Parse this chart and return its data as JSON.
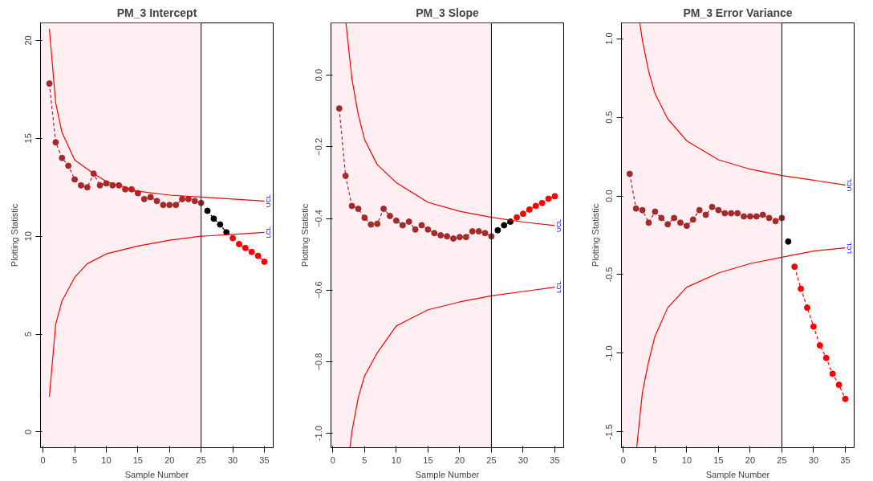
{
  "chart_data": [
    {
      "type": "line",
      "title": "PM_3 Intercept",
      "xlabel": "Sample Number",
      "ylabel": "Plotting Statistic",
      "xlim": [
        -0.4,
        36.4
      ],
      "ylim": [
        -0.8,
        20.9
      ],
      "xticks": [
        0,
        5,
        10,
        15,
        20,
        25,
        30,
        35
      ],
      "yticks": [
        0,
        5,
        10,
        15,
        20
      ],
      "grid": false,
      "marker": "circle",
      "line_style": "dashed",
      "bands": [
        {
          "axis": "x",
          "from": -0.4,
          "to": 25,
          "color": "#ffeef2"
        }
      ],
      "ref_lines": [
        {
          "axis": "x",
          "value": 25,
          "color": "#000000"
        }
      ],
      "series": [
        {
          "color": "#a52a2a",
          "x": [
            1,
            2,
            3,
            4,
            5,
            6,
            7,
            8,
            9,
            10,
            11,
            12,
            13,
            14,
            15,
            16,
            17,
            18,
            19,
            20,
            21,
            22,
            23,
            24,
            25
          ],
          "values": [
            17.8,
            14.8,
            14.0,
            13.6,
            12.9,
            12.6,
            12.5,
            13.2,
            12.6,
            12.7,
            12.6,
            12.6,
            12.4,
            12.4,
            12.2,
            11.9,
            12.0,
            11.8,
            11.6,
            11.6,
            11.6,
            11.9,
            11.9,
            11.8,
            11.7
          ]
        },
        {
          "color": "#000000",
          "x": [
            26,
            27,
            28,
            29
          ],
          "values": [
            11.3,
            10.9,
            10.6,
            10.2
          ]
        },
        {
          "color": "#ff0000",
          "x": [
            30,
            31,
            32,
            33,
            34,
            35
          ],
          "values": [
            9.9,
            9.6,
            9.4,
            9.2,
            9.0,
            8.7
          ]
        },
        {
          "name": "UCL",
          "color": "#ff0000",
          "marker": "none",
          "line_style": "solid",
          "x": [
            1,
            2,
            3,
            5,
            8,
            10,
            15,
            20,
            25,
            30,
            35
          ],
          "values": [
            20.6,
            16.8,
            15.3,
            13.9,
            13.2,
            12.8,
            12.3,
            12.1,
            12.0,
            11.9,
            11.8
          ]
        },
        {
          "name": "LCL",
          "color": "#ff0000",
          "marker": "none",
          "line_style": "solid",
          "x": [
            1,
            2,
            3,
            5,
            7,
            10,
            15,
            20,
            25,
            30,
            35
          ],
          "values": [
            1.8,
            5.5,
            6.7,
            7.9,
            8.6,
            9.1,
            9.5,
            9.8,
            10.0,
            10.1,
            10.2
          ]
        }
      ]
    },
    {
      "type": "line",
      "title": "PM_3 Slope",
      "xlabel": "Sample Number",
      "ylabel": "Plotting Statistic",
      "xlim": [
        -0.3,
        36.4
      ],
      "ylim": [
        -1.04,
        0.146
      ],
      "xticks": [
        0,
        5,
        10,
        15,
        20,
        25,
        30,
        35
      ],
      "yticks": [
        {
          "value": 0,
          "label": "0.0"
        },
        -0.2,
        -0.4,
        -0.6,
        -0.8,
        {
          "value": -1,
          "label": "-1.0"
        }
      ],
      "grid": false,
      "marker": "circle",
      "line_style": "dashed",
      "bands": [
        {
          "axis": "x",
          "from": -0.3,
          "to": 25,
          "color": "#ffeef2"
        }
      ],
      "ref_lines": [
        {
          "axis": "x",
          "value": 25,
          "color": "#000000"
        }
      ],
      "series": [
        {
          "color": "#a52a2a",
          "x": [
            1,
            2,
            3,
            4,
            5,
            6,
            7,
            8,
            9,
            10,
            11,
            12,
            13,
            14,
            15,
            16,
            17,
            18,
            19,
            20,
            21,
            22,
            23,
            24,
            25
          ],
          "values": [
            -0.093,
            -0.281,
            -0.365,
            -0.373,
            -0.398,
            -0.417,
            -0.415,
            -0.373,
            -0.393,
            -0.406,
            -0.419,
            -0.409,
            -0.431,
            -0.419,
            -0.431,
            -0.441,
            -0.447,
            -0.45,
            -0.456,
            -0.452,
            -0.452,
            -0.436,
            -0.436,
            -0.441,
            -0.45
          ]
        },
        {
          "color": "#000000",
          "x": [
            26,
            27,
            28
          ],
          "values": [
            -0.433,
            -0.419,
            -0.409
          ]
        },
        {
          "color": "#ff0000",
          "x": [
            29,
            30,
            31,
            32,
            33,
            34,
            35
          ],
          "values": [
            -0.397,
            -0.387,
            -0.375,
            -0.365,
            -0.357,
            -0.345,
            -0.338
          ]
        },
        {
          "name": "UCL",
          "color": "#ff0000",
          "marker": "none",
          "line_style": "solid",
          "x": [
            2.06,
            3,
            4,
            5,
            7,
            10,
            15,
            20,
            25,
            30,
            35
          ],
          "values": [
            0.146,
            -0.01,
            -0.11,
            -0.18,
            -0.25,
            -0.3,
            -0.355,
            -0.38,
            -0.397,
            -0.41,
            -0.42
          ]
        },
        {
          "name": "LCL",
          "color": "#ff0000",
          "marker": "none",
          "line_style": "solid",
          "x": [
            2.7,
            3,
            4,
            5,
            7,
            10,
            15,
            20,
            25,
            30,
            35
          ],
          "values": [
            -1.04,
            -0.995,
            -0.9,
            -0.84,
            -0.775,
            -0.7,
            -0.655,
            -0.633,
            -0.616,
            -0.604,
            -0.592
          ]
        }
      ]
    },
    {
      "type": "line",
      "title": "PM_3 Error Variance",
      "xlabel": "Sample Number",
      "ylabel": "Plotting Statistic",
      "xlim": [
        -0.3,
        36.4
      ],
      "ylim": [
        -1.6,
        1.1
      ],
      "xticks": [
        0,
        5,
        10,
        15,
        20,
        25,
        30,
        35
      ],
      "yticks": [
        {
          "value": -1.5,
          "label": "-1.5"
        },
        {
          "value": -1,
          "label": "-1.0"
        },
        {
          "value": -0.5,
          "label": "-0.5"
        },
        {
          "value": 0,
          "label": "0.0"
        },
        0.5,
        {
          "value": 1,
          "label": "1.0"
        }
      ],
      "grid": false,
      "marker": "circle",
      "line_style": "dashed",
      "bands": [
        {
          "axis": "x",
          "from": -0.3,
          "to": 25,
          "color": "#ffeef2"
        }
      ],
      "ref_lines": [
        {
          "axis": "x",
          "value": 25,
          "color": "#000000"
        }
      ],
      "series": [
        {
          "color": "#a52a2a",
          "x": [
            1,
            2,
            3,
            4,
            5,
            6,
            7,
            8,
            9,
            10,
            11,
            12,
            13,
            14,
            15,
            16,
            17,
            18,
            19,
            20,
            21,
            22,
            23,
            24,
            25
          ],
          "values": [
            0.14,
            -0.08,
            -0.09,
            -0.17,
            -0.1,
            -0.14,
            -0.18,
            -0.14,
            -0.17,
            -0.19,
            -0.15,
            -0.09,
            -0.12,
            -0.07,
            -0.09,
            -0.11,
            -0.11,
            -0.11,
            -0.13,
            -0.13,
            -0.13,
            -0.12,
            -0.14,
            -0.16,
            -0.14
          ]
        },
        {
          "color": "#000000",
          "x": [
            26
          ],
          "values": [
            -0.29
          ]
        },
        {
          "color": "#ff0000",
          "x": [
            27,
            28,
            29,
            30,
            31,
            32,
            33,
            34,
            35
          ],
          "values": [
            -0.45,
            -0.59,
            -0.71,
            -0.83,
            -0.95,
            -1.03,
            -1.13,
            -1.2,
            -1.29
          ]
        },
        {
          "name": "UCL",
          "color": "#ff0000",
          "marker": "none",
          "line_style": "solid",
          "x": [
            2.6,
            3,
            4,
            5,
            7,
            10,
            15,
            20,
            25,
            30,
            35
          ],
          "values": [
            1.1,
            0.99,
            0.79,
            0.65,
            0.49,
            0.35,
            0.23,
            0.17,
            0.13,
            0.1,
            0.07
          ]
        },
        {
          "name": "LCL",
          "color": "#ff0000",
          "marker": "none",
          "line_style": "solid",
          "x": [
            2.1,
            3,
            4,
            5,
            7,
            10,
            15,
            20,
            25,
            30,
            35
          ],
          "values": [
            -1.6,
            -1.25,
            -1.05,
            -0.89,
            -0.71,
            -0.58,
            -0.49,
            -0.43,
            -0.39,
            -0.35,
            -0.33
          ]
        }
      ]
    }
  ]
}
